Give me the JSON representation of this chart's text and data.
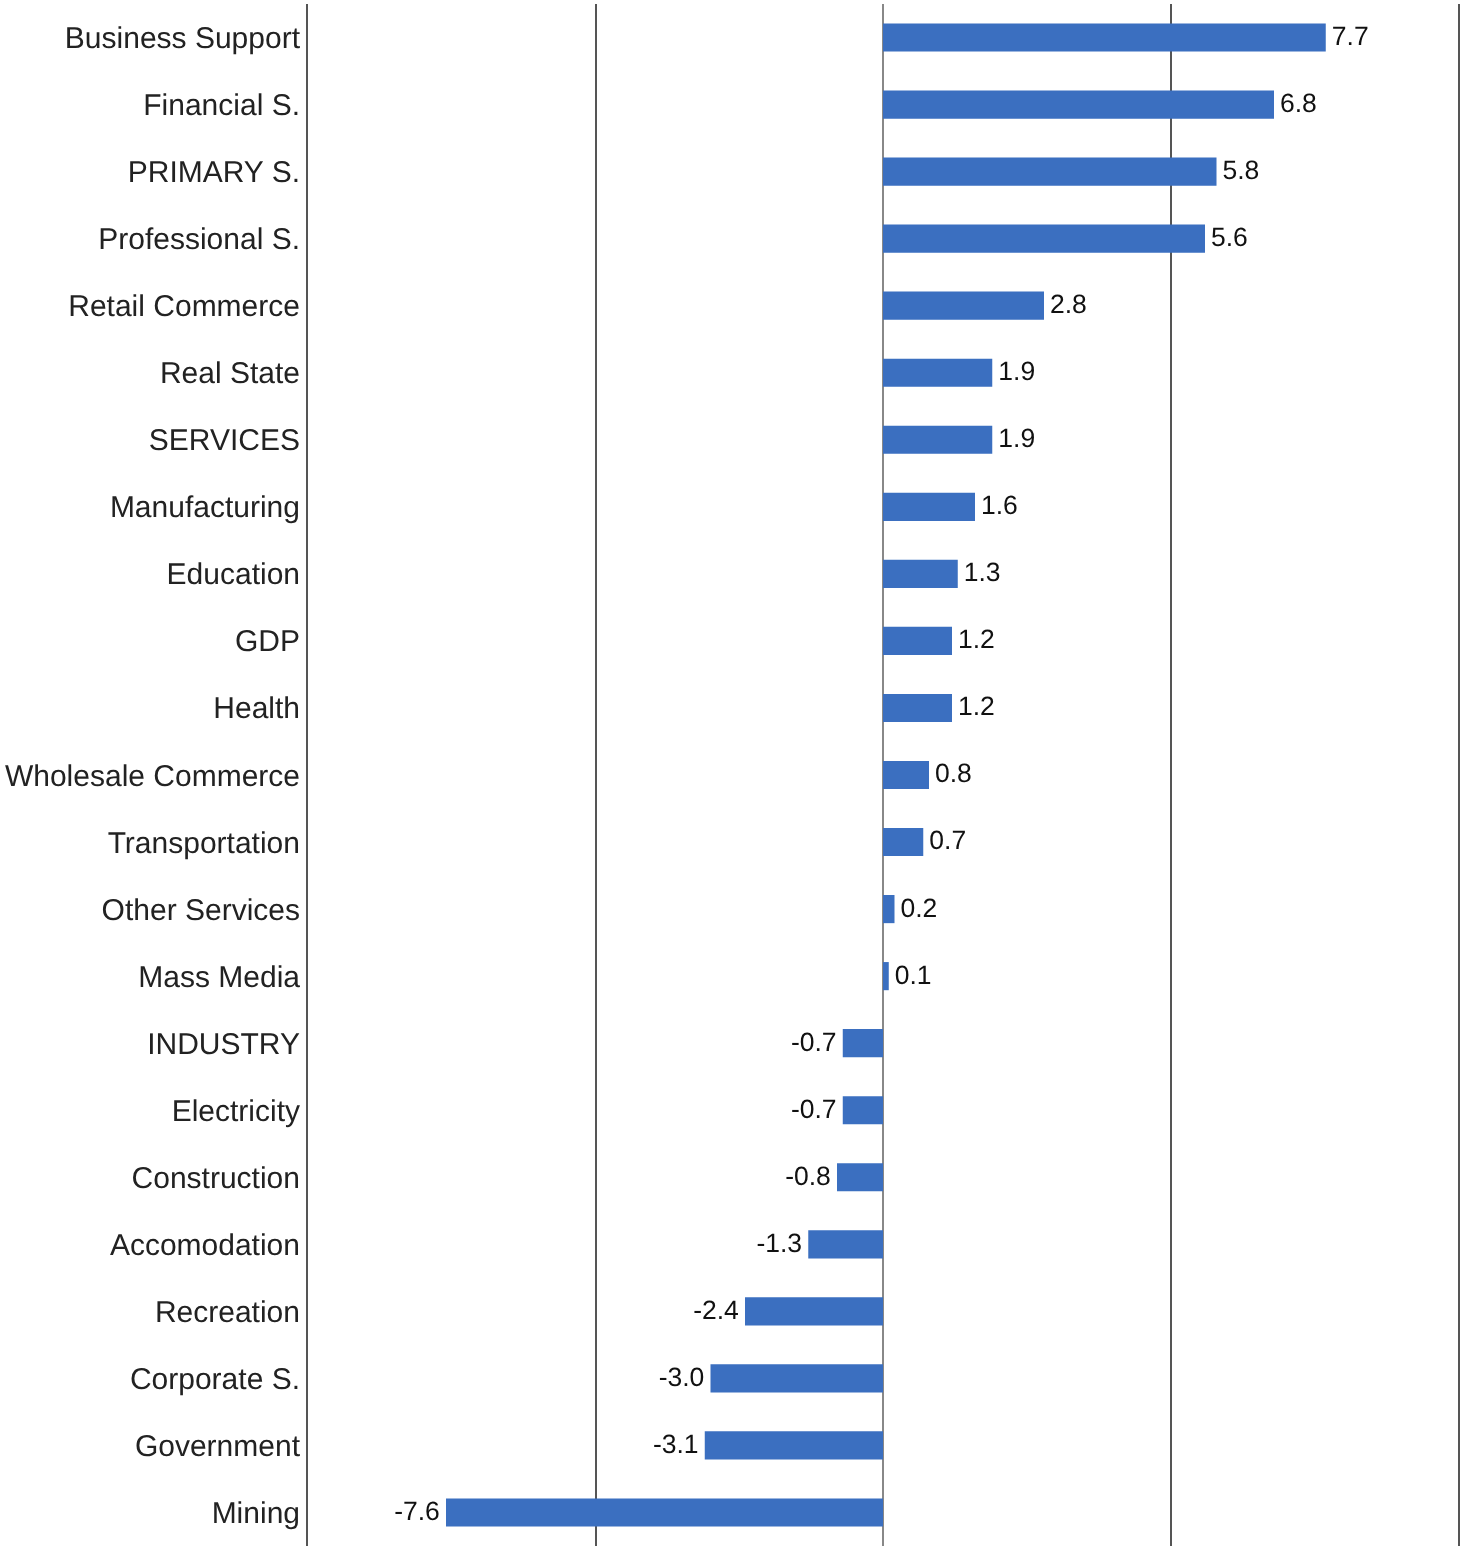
{
  "chart_data": {
    "type": "bar",
    "orientation": "horizontal",
    "categories": [
      "Business Support",
      "Financial S.",
      "PRIMARY S.",
      "Professional S.",
      "Retail Commerce",
      "Real State",
      "SERVICES",
      "Manufacturing",
      "Education",
      "GDP",
      "Health",
      "Wholesale Commerce",
      "Transportation",
      "Other Services",
      "Mass Media",
      "INDUSTRY",
      "Electricity",
      "Construction",
      "Accomodation",
      "Recreation",
      "Corporate S.",
      "Government",
      "Mining"
    ],
    "values": [
      7.7,
      6.8,
      5.8,
      5.6,
      2.8,
      1.9,
      1.9,
      1.6,
      1.3,
      1.2,
      1.2,
      0.8,
      0.7,
      0.2,
      0.1,
      -0.7,
      -0.7,
      -0.8,
      -1.3,
      -2.4,
      -3.0,
      -3.1,
      -7.6
    ],
    "value_labels": [
      "7.7",
      "6.8",
      "5.8",
      "5.6",
      "2.8",
      "1.9",
      "1.9",
      "1.6",
      "1.3",
      "1.2",
      "1.2",
      "0.8",
      "0.7",
      "0.2",
      "0.1",
      "-0.7",
      "-0.7",
      "-0.8",
      "-1.3",
      "-2.4",
      "-3.0",
      "-3.1",
      "-7.6"
    ],
    "color": "#3b6fc0",
    "xlim": [
      -10,
      10
    ],
    "xticks": [
      {
        "value": -10,
        "label": null
      },
      {
        "value": -5,
        "label": null
      },
      {
        "value": 0,
        "label": null
      },
      {
        "value": 5,
        "label": null
      },
      {
        "value": 10,
        "label": null
      }
    ],
    "grid": "x",
    "tick_labels": "y",
    "legend": false
  }
}
